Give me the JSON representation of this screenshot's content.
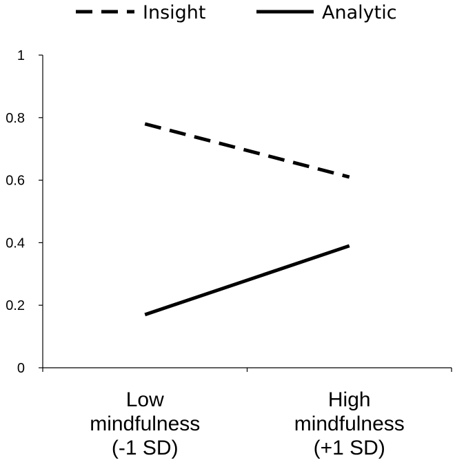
{
  "chart_data": {
    "type": "line",
    "categories": [
      "Low mindfulness (-1 SD)",
      "High mindfulness (+1 SD)"
    ],
    "category_lines": [
      [
        "Low",
        "mindfulness",
        "(-1 SD)"
      ],
      [
        "High",
        "mindfulness",
        "(+1 SD)"
      ]
    ],
    "series": [
      {
        "name": "Insight",
        "values": [
          0.78,
          0.61
        ],
        "style": "dashed",
        "color": "#000000"
      },
      {
        "name": "Analytic",
        "values": [
          0.17,
          0.39
        ],
        "style": "solid",
        "color": "#000000"
      }
    ],
    "y_ticks": [
      "0",
      "0.2",
      "0.4",
      "0.6",
      "0.8",
      "1"
    ],
    "ylim": [
      0,
      1
    ],
    "title": "",
    "xlabel": "",
    "ylabel": "",
    "grid": false,
    "legend_position": "top"
  }
}
